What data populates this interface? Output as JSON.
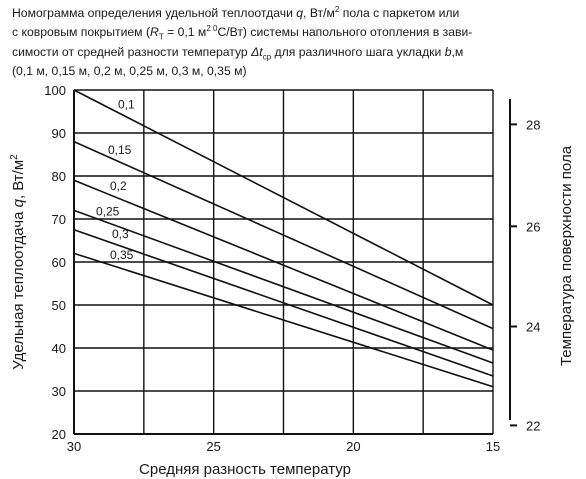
{
  "caption": {
    "line1_a": "Номограмма определения удельной теплоотдачи ",
    "line1_q": "q",
    "line1_b": ", Вт/м",
    "line1_sup": "2",
    "line1_c": " пола с паркетом или",
    "line2_a": "с ковровым покрытием (",
    "line2_r": "R",
    "line2_rsub": "T",
    "line2_b": " = 0,1 м",
    "line2_sup": "2 0",
    "line2_c": "С/Вт) системы напольного отопления в зави-",
    "line3_a": "симости от средней разности температур ",
    "line3_dt": "Δt",
    "line3_dtsub": "ср",
    "line3_b": " для различного шага укладки ",
    "line3_bvar": "b",
    "line3_c": ",м",
    "line4": "(0,1 м, 0,15 м, 0,2 м, 0,25 м, 0,3 м, 0,35 м)"
  },
  "chart_data": {
    "type": "line",
    "xlabel": "Средняя разность температур",
    "ylabel_a": "Удельная теплоотдача ",
    "ylabel_q": "q",
    "ylabel_b": ", Вт/м",
    "ylabel_sup": "2",
    "y2label": "Температура поверхности пола",
    "x_reversed": true,
    "xlim": [
      30,
      15
    ],
    "ylim": [
      20,
      100
    ],
    "x_ticks": [
      "30",
      "25",
      "20",
      "15"
    ],
    "y_ticks": [
      "20",
      "30",
      "40",
      "50",
      "60",
      "70",
      "80",
      "90",
      "100"
    ],
    "y2_ticks": [
      "22",
      "24",
      "26",
      "28"
    ],
    "y2_tick_q": [
      22.0,
      45.0,
      68.3,
      92.0
    ],
    "grid": true,
    "series": [
      {
        "name": "0,1",
        "x": [
          30,
          15
        ],
        "y": [
          100,
          50
        ]
      },
      {
        "name": "0,15",
        "x": [
          30,
          15
        ],
        "y": [
          88,
          44.5
        ]
      },
      {
        "name": "0,2",
        "x": [
          30,
          15
        ],
        "y": [
          79,
          39.5
        ]
      },
      {
        "name": "0,25",
        "x": [
          30,
          15
        ],
        "y": [
          72,
          36.5
        ]
      },
      {
        "name": "0,3",
        "x": [
          30,
          15
        ],
        "y": [
          67.5,
          33.5
        ]
      },
      {
        "name": "0,35",
        "x": [
          30,
          15
        ],
        "y": [
          62,
          31
        ]
      }
    ]
  }
}
